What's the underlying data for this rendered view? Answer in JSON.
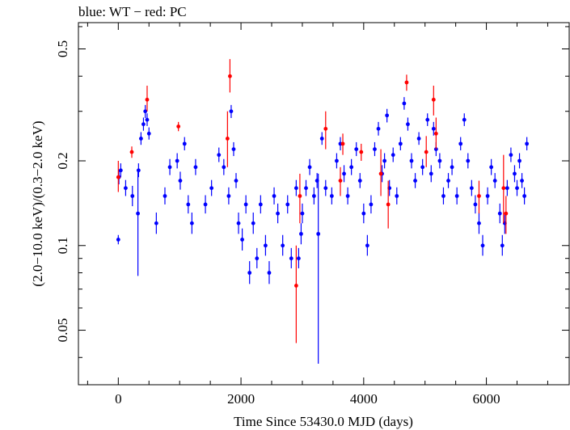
{
  "chart_data": {
    "type": "scatter",
    "title": "blue: WT − red: PC",
    "xlabel": "Time Since 53430.0 MJD (days)",
    "ylabel": "(2.0−10.0 keV)/(0.3−2.0 keV)",
    "xlim": [
      -650,
      7350
    ],
    "ylim": [
      0.032,
      0.62
    ],
    "yscale": "log",
    "grid": false,
    "x_ticks": [
      0,
      2000,
      4000,
      6000
    ],
    "x_tick_labels": [
      "0",
      "2000",
      "4000",
      "6000"
    ],
    "y_ticks": [
      0.05,
      0.1,
      0.2,
      0.5
    ],
    "y_tick_labels": [
      "0.05",
      "0.1",
      "0.2",
      "0.5"
    ],
    "series": [
      {
        "name": "WT",
        "color": "#0000ff",
        "points": [
          [
            0,
            0.105,
            0.101,
            0.109
          ],
          [
            10,
            0.175,
            0.165,
            0.186
          ],
          [
            40,
            0.185,
            0.175,
            0.196
          ],
          [
            120,
            0.16,
            0.15,
            0.171
          ],
          [
            230,
            0.15,
            0.138,
            0.163
          ],
          [
            320,
            0.13,
            0.078,
            0.185
          ],
          [
            330,
            0.185,
            0.175,
            0.196
          ],
          [
            370,
            0.24,
            0.228,
            0.253
          ],
          [
            410,
            0.27,
            0.256,
            0.285
          ],
          [
            440,
            0.3,
            0.284,
            0.316
          ],
          [
            470,
            0.28,
            0.266,
            0.295
          ],
          [
            500,
            0.25,
            0.238,
            0.263
          ],
          [
            620,
            0.12,
            0.11,
            0.131
          ],
          [
            760,
            0.15,
            0.14,
            0.161
          ],
          [
            840,
            0.19,
            0.178,
            0.203
          ],
          [
            960,
            0.2,
            0.188,
            0.213
          ],
          [
            1010,
            0.17,
            0.158,
            0.183
          ],
          [
            1080,
            0.23,
            0.218,
            0.243
          ],
          [
            1140,
            0.14,
            0.13,
            0.151
          ],
          [
            1200,
            0.12,
            0.11,
            0.131
          ],
          [
            1260,
            0.19,
            0.178,
            0.203
          ],
          [
            1420,
            0.14,
            0.13,
            0.151
          ],
          [
            1520,
            0.16,
            0.15,
            0.171
          ],
          [
            1640,
            0.21,
            0.198,
            0.223
          ],
          [
            1720,
            0.19,
            0.178,
            0.203
          ],
          [
            1800,
            0.15,
            0.14,
            0.161
          ],
          [
            1840,
            0.3,
            0.284,
            0.316
          ],
          [
            1880,
            0.22,
            0.208,
            0.233
          ],
          [
            1920,
            0.17,
            0.16,
            0.181
          ],
          [
            1960,
            0.12,
            0.11,
            0.131
          ],
          [
            2020,
            0.105,
            0.096,
            0.115
          ],
          [
            2080,
            0.14,
            0.13,
            0.151
          ],
          [
            2140,
            0.08,
            0.073,
            0.088
          ],
          [
            2200,
            0.12,
            0.11,
            0.131
          ],
          [
            2260,
            0.09,
            0.083,
            0.098
          ],
          [
            2320,
            0.14,
            0.13,
            0.151
          ],
          [
            2400,
            0.1,
            0.092,
            0.109
          ],
          [
            2460,
            0.08,
            0.073,
            0.088
          ],
          [
            2540,
            0.15,
            0.14,
            0.161
          ],
          [
            2600,
            0.13,
            0.12,
            0.141
          ],
          [
            2680,
            0.1,
            0.092,
            0.109
          ],
          [
            2760,
            0.14,
            0.13,
            0.151
          ],
          [
            2820,
            0.09,
            0.083,
            0.098
          ],
          [
            2900,
            0.16,
            0.15,
            0.171
          ],
          [
            2940,
            0.09,
            0.083,
            0.098
          ],
          [
            2980,
            0.11,
            0.101,
            0.12
          ],
          [
            3000,
            0.13,
            0.12,
            0.141
          ],
          [
            3060,
            0.16,
            0.15,
            0.171
          ],
          [
            3120,
            0.19,
            0.178,
            0.203
          ],
          [
            3190,
            0.15,
            0.14,
            0.161
          ],
          [
            3240,
            0.17,
            0.16,
            0.181
          ],
          [
            3260,
            0.11,
            0.038,
            0.18
          ],
          [
            3320,
            0.24,
            0.228,
            0.253
          ],
          [
            3380,
            0.16,
            0.15,
            0.171
          ],
          [
            3480,
            0.15,
            0.14,
            0.161
          ],
          [
            3560,
            0.2,
            0.188,
            0.213
          ],
          [
            3620,
            0.23,
            0.218,
            0.243
          ],
          [
            3680,
            0.18,
            0.168,
            0.193
          ],
          [
            3740,
            0.15,
            0.14,
            0.161
          ],
          [
            3800,
            0.19,
            0.178,
            0.203
          ],
          [
            3880,
            0.22,
            0.208,
            0.233
          ],
          [
            3940,
            0.17,
            0.16,
            0.181
          ],
          [
            4000,
            0.13,
            0.12,
            0.141
          ],
          [
            4060,
            0.1,
            0.092,
            0.109
          ],
          [
            4120,
            0.14,
            0.13,
            0.151
          ],
          [
            4180,
            0.22,
            0.208,
            0.233
          ],
          [
            4240,
            0.26,
            0.246,
            0.275
          ],
          [
            4300,
            0.18,
            0.168,
            0.193
          ],
          [
            4340,
            0.2,
            0.188,
            0.213
          ],
          [
            4380,
            0.29,
            0.274,
            0.306
          ],
          [
            4420,
            0.16,
            0.15,
            0.171
          ],
          [
            4480,
            0.21,
            0.198,
            0.223
          ],
          [
            4540,
            0.15,
            0.14,
            0.161
          ],
          [
            4600,
            0.23,
            0.218,
            0.243
          ],
          [
            4660,
            0.32,
            0.304,
            0.337
          ],
          [
            4720,
            0.27,
            0.256,
            0.285
          ],
          [
            4780,
            0.2,
            0.188,
            0.213
          ],
          [
            4840,
            0.17,
            0.16,
            0.181
          ],
          [
            4900,
            0.24,
            0.228,
            0.253
          ],
          [
            4960,
            0.19,
            0.178,
            0.203
          ],
          [
            5040,
            0.28,
            0.266,
            0.295
          ],
          [
            5100,
            0.18,
            0.168,
            0.193
          ],
          [
            5140,
            0.26,
            0.246,
            0.275
          ],
          [
            5180,
            0.22,
            0.208,
            0.233
          ],
          [
            5240,
            0.2,
            0.188,
            0.213
          ],
          [
            5300,
            0.15,
            0.14,
            0.161
          ],
          [
            5380,
            0.17,
            0.16,
            0.181
          ],
          [
            5440,
            0.19,
            0.178,
            0.203
          ],
          [
            5520,
            0.15,
            0.14,
            0.161
          ],
          [
            5580,
            0.23,
            0.218,
            0.243
          ],
          [
            5640,
            0.28,
            0.266,
            0.295
          ],
          [
            5700,
            0.2,
            0.188,
            0.213
          ],
          [
            5760,
            0.16,
            0.15,
            0.171
          ],
          [
            5820,
            0.14,
            0.13,
            0.151
          ],
          [
            5880,
            0.12,
            0.11,
            0.131
          ],
          [
            5940,
            0.1,
            0.092,
            0.109
          ],
          [
            6020,
            0.15,
            0.14,
            0.161
          ],
          [
            6080,
            0.19,
            0.178,
            0.203
          ],
          [
            6140,
            0.17,
            0.16,
            0.181
          ],
          [
            6220,
            0.13,
            0.12,
            0.141
          ],
          [
            6260,
            0.1,
            0.092,
            0.109
          ],
          [
            6300,
            0.12,
            0.11,
            0.131
          ],
          [
            6340,
            0.16,
            0.15,
            0.171
          ],
          [
            6400,
            0.21,
            0.198,
            0.223
          ],
          [
            6460,
            0.18,
            0.168,
            0.193
          ],
          [
            6500,
            0.16,
            0.15,
            0.171
          ],
          [
            6540,
            0.2,
            0.188,
            0.213
          ],
          [
            6580,
            0.17,
            0.16,
            0.181
          ],
          [
            6620,
            0.15,
            0.14,
            0.161
          ],
          [
            6660,
            0.23,
            0.218,
            0.243
          ]
        ]
      },
      {
        "name": "PC",
        "color": "#ff0000",
        "points": [
          [
            0,
            0.175,
            0.155,
            0.2
          ],
          [
            220,
            0.215,
            0.205,
            0.225
          ],
          [
            470,
            0.33,
            0.3,
            0.37
          ],
          [
            980,
            0.265,
            0.255,
            0.275
          ],
          [
            1780,
            0.24,
            0.19,
            0.3
          ],
          [
            1820,
            0.4,
            0.35,
            0.46
          ],
          [
            2900,
            0.072,
            0.045,
            0.1
          ],
          [
            2960,
            0.15,
            0.12,
            0.18
          ],
          [
            3380,
            0.26,
            0.22,
            0.3
          ],
          [
            3620,
            0.17,
            0.15,
            0.19
          ],
          [
            3660,
            0.23,
            0.21,
            0.25
          ],
          [
            3960,
            0.215,
            0.2,
            0.23
          ],
          [
            4280,
            0.18,
            0.15,
            0.22
          ],
          [
            4400,
            0.14,
            0.115,
            0.17
          ],
          [
            4700,
            0.38,
            0.355,
            0.405
          ],
          [
            5020,
            0.215,
            0.19,
            0.245
          ],
          [
            5140,
            0.33,
            0.29,
            0.37
          ],
          [
            5180,
            0.25,
            0.22,
            0.285
          ],
          [
            5880,
            0.15,
            0.13,
            0.17
          ],
          [
            6280,
            0.16,
            0.12,
            0.21
          ],
          [
            6320,
            0.13,
            0.11,
            0.15
          ]
        ]
      }
    ]
  }
}
